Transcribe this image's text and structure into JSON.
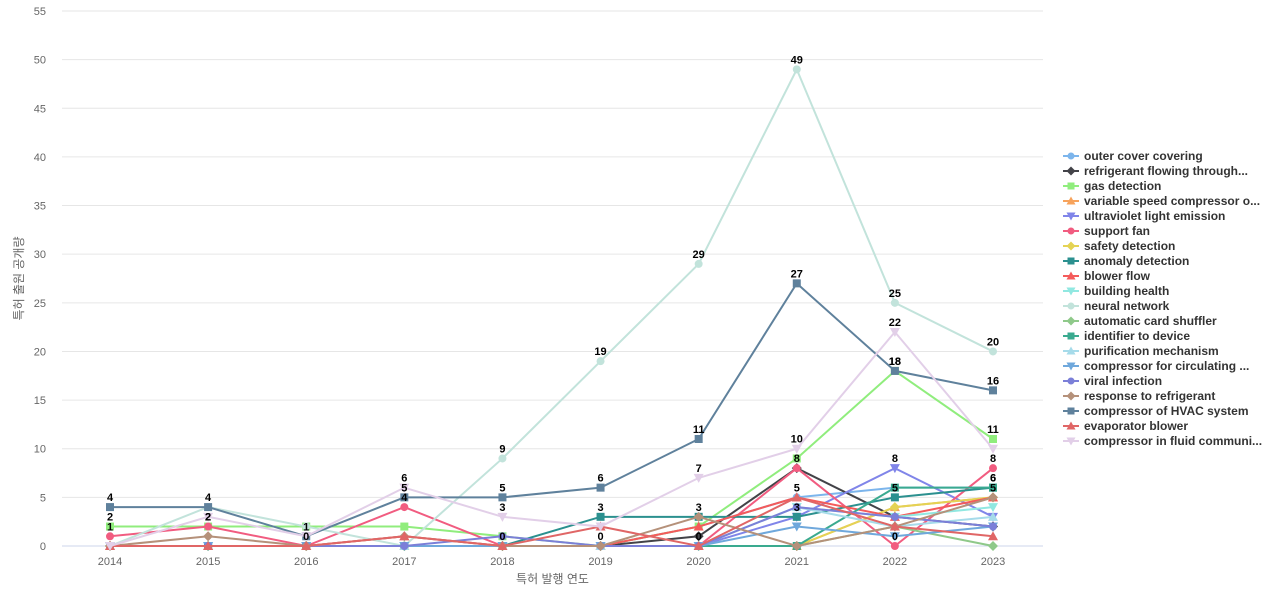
{
  "chart_data": {
    "type": "line",
    "title": "",
    "xlabel": "특허 발행 연도",
    "ylabel": "특허 출원 공개량",
    "categories": [
      "2014",
      "2015",
      "2016",
      "2017",
      "2018",
      "2019",
      "2020",
      "2021",
      "2022",
      "2023"
    ],
    "ylim": [
      0,
      55
    ],
    "yticks": [
      0,
      5,
      10,
      15,
      20,
      25,
      30,
      35,
      40,
      45,
      50,
      55
    ],
    "grid": true,
    "legend_position": "right",
    "series": [
      {
        "name": "outer cover covering",
        "label": "outer cover covering",
        "color": "#7cb5ec",
        "marker": "circle",
        "values": [
          0,
          0,
          0,
          0,
          0,
          0,
          2,
          5,
          6,
          6
        ]
      },
      {
        "name": "refrigerant flowing through...",
        "label": "refrigerant flowing through...",
        "color": "#434348",
        "marker": "diamond",
        "values": [
          0,
          0,
          0,
          0,
          0,
          0,
          1,
          8,
          3,
          2
        ]
      },
      {
        "name": "gas detection",
        "label": "gas detection",
        "color": "#90ed7d",
        "marker": "square",
        "values": [
          2,
          2,
          2,
          2,
          1,
          0,
          2,
          9,
          18,
          11
        ]
      },
      {
        "name": "variable speed compressor o...",
        "label": "variable speed compressor o...",
        "color": "#f7a35c",
        "marker": "triangle",
        "values": [
          0,
          0,
          0,
          0,
          0,
          0,
          0,
          0,
          4,
          5
        ]
      },
      {
        "name": "ultraviolet light emission",
        "label": "ultraviolet light emission",
        "color": "#8085e9",
        "marker": "triangle-down",
        "values": [
          0,
          0,
          0,
          0,
          0,
          0,
          0,
          3,
          8,
          3
        ]
      },
      {
        "name": "support fan",
        "label": "support fan",
        "color": "#f15c80",
        "marker": "circle",
        "values": [
          1,
          2,
          0,
          4,
          0,
          0,
          0,
          8,
          0,
          8
        ]
      },
      {
        "name": "safety detection",
        "label": "safety detection",
        "color": "#e4d354",
        "marker": "diamond",
        "values": [
          0,
          0,
          0,
          0,
          0,
          0,
          0,
          0,
          4,
          5
        ]
      },
      {
        "name": "anomaly detection",
        "label": "anomaly detection",
        "color": "#2b908f",
        "marker": "square",
        "values": [
          0,
          0,
          0,
          0,
          0,
          3,
          3,
          3,
          5,
          6
        ]
      },
      {
        "name": "blower flow",
        "label": "blower flow",
        "color": "#f45b5b",
        "marker": "triangle",
        "values": [
          0,
          0,
          0,
          1,
          0,
          0,
          2,
          5,
          3,
          5
        ]
      },
      {
        "name": "building health",
        "label": "building health",
        "color": "#91e8e1",
        "marker": "triangle-down",
        "values": [
          0,
          0,
          0,
          0,
          0,
          0,
          0,
          4,
          3,
          4
        ]
      },
      {
        "name": "neural network",
        "label": "neural network",
        "color": "#c2e3db",
        "marker": "circle",
        "values": [
          0,
          4,
          2,
          0,
          9,
          19,
          29,
          49,
          25,
          20
        ]
      },
      {
        "name": "automatic card shuffler",
        "label": "automatic card shuffler",
        "color": "#8fc98a",
        "marker": "diamond",
        "values": [
          0,
          0,
          0,
          0,
          0,
          0,
          0,
          0,
          2,
          0
        ]
      },
      {
        "name": "identifier to device",
        "label": "identifier to device",
        "color": "#3aaa8f",
        "marker": "square",
        "values": [
          0,
          0,
          0,
          0,
          0,
          0,
          0,
          0,
          6,
          6
        ]
      },
      {
        "name": "purification mechanism",
        "label": "purification mechanism",
        "color": "#a6dbea",
        "marker": "triangle",
        "values": [
          0,
          0,
          0,
          0,
          0,
          0,
          0,
          4,
          2,
          3
        ]
      },
      {
        "name": "compressor for circulating ...",
        "label": "compressor for circulating ...",
        "color": "#6fa8dc",
        "marker": "triangle-down",
        "values": [
          0,
          0,
          0,
          0,
          0,
          0,
          0,
          2,
          1,
          2
        ]
      },
      {
        "name": "viral infection",
        "label": "viral infection",
        "color": "#7b7fd8",
        "marker": "circle",
        "values": [
          0,
          0,
          0,
          0,
          1,
          0,
          0,
          4,
          3,
          2
        ]
      },
      {
        "name": "response to refrigerant",
        "label": "response to refrigerant",
        "color": "#b5917a",
        "marker": "diamond",
        "values": [
          0,
          1,
          0,
          1,
          0,
          0,
          3,
          0,
          2,
          5
        ]
      },
      {
        "name": "compressor of HVAC system",
        "label": "compressor of HVAC system",
        "color": "#5f819c",
        "marker": "square",
        "values": [
          4,
          4,
          1,
          5,
          5,
          6,
          11,
          27,
          18,
          16
        ]
      },
      {
        "name": "evaporator blower",
        "label": "evaporator blower",
        "color": "#e06666",
        "marker": "triangle",
        "values": [
          0,
          0,
          0,
          1,
          0,
          2,
          0,
          5,
          2,
          1
        ]
      },
      {
        "name": "compressor in fluid communi...",
        "label": "compressor in fluid communi...",
        "color": "#e2cfe8",
        "marker": "triangle-down",
        "values": [
          0,
          3,
          1,
          6,
          3,
          2,
          7,
          10,
          22,
          10
        ]
      }
    ],
    "data_labels": [
      {
        "series": "compressor of HVAC system",
        "points": [
          0,
          1,
          2,
          3,
          4,
          5,
          6,
          7,
          8,
          9
        ]
      },
      {
        "series": "gas detection",
        "points": [
          0,
          1,
          8,
          9
        ]
      },
      {
        "series": "support fan",
        "points": [
          0,
          1,
          2,
          3,
          4,
          5,
          6,
          7,
          8,
          9
        ]
      },
      {
        "series": "neural network",
        "points": [
          4,
          5,
          6,
          7,
          8,
          9
        ]
      },
      {
        "series": "compressor in fluid communi...",
        "points": [
          3,
          4,
          6,
          7,
          8
        ]
      },
      {
        "series": "anomaly detection",
        "points": [
          5,
          6,
          7,
          8,
          9
        ]
      },
      {
        "series": "ultraviolet light emission",
        "points": [
          8
        ]
      },
      {
        "series": "blower flow",
        "points": [
          7,
          9
        ]
      },
      {
        "series": "outer cover covering",
        "points": [
          9
        ]
      }
    ]
  }
}
